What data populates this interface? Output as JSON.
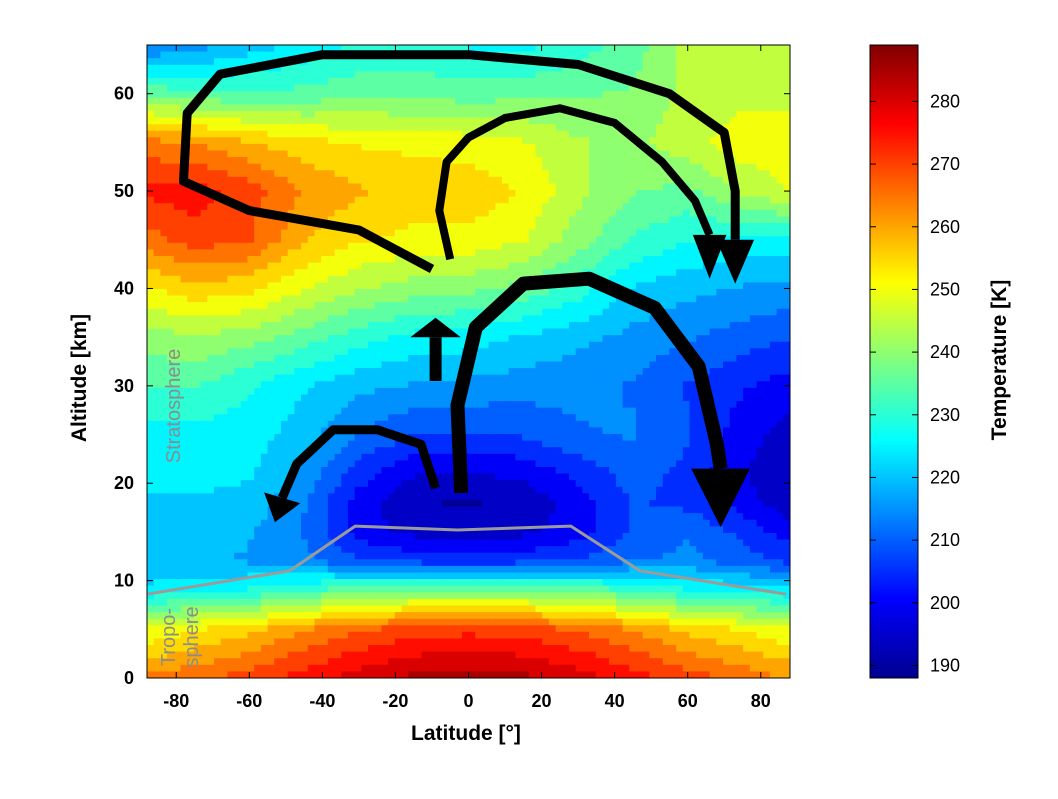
{
  "chart_data": {
    "type": "heatmap",
    "xlabel": "Latitude [°]",
    "ylabel": "Altitude [km]",
    "colorbar_label": "Temperature [K]",
    "xlim": [
      -88,
      88
    ],
    "ylim": [
      0,
      65
    ],
    "x_ticks": [
      "-80",
      "-60",
      "-40",
      "-20",
      "0",
      "20",
      "40",
      "60",
      "80"
    ],
    "y_ticks": [
      "0",
      "10",
      "20",
      "30",
      "40",
      "50",
      "60"
    ],
    "colorbar_range": [
      188,
      289
    ],
    "colorbar_ticks": [
      "190",
      "200",
      "210",
      "220",
      "230",
      "240",
      "250",
      "260",
      "270",
      "280"
    ],
    "colormap": "jet",
    "grid": false,
    "region_labels": [
      "Stratosphere",
      "Tropo-",
      "sphere"
    ],
    "tropopause": {
      "color": "#9b9b9b",
      "x": [
        -88,
        -49,
        -31,
        -3,
        28,
        47,
        87
      ],
      "y": [
        8.6,
        11,
        15.6,
        15.2,
        15.6,
        11,
        8.6
      ]
    },
    "temperature_field": {
      "columns_latitude": [
        -88,
        -75,
        -60,
        -45,
        -30,
        -15,
        0,
        15,
        30,
        45,
        60,
        75,
        88
      ],
      "rows": [
        {
          "altitude": 0,
          "values": [
            264,
            266,
            270,
            275,
            280,
            284,
            285,
            284,
            280,
            275,
            270,
            266,
            262
          ]
        },
        {
          "altitude": 5,
          "values": [
            248,
            252,
            256,
            262,
            267,
            270,
            271,
            270,
            267,
            262,
            256,
            252,
            248
          ]
        },
        {
          "altitude": 9,
          "values": [
            224,
            226,
            228,
            232,
            236,
            238,
            238,
            238,
            236,
            232,
            228,
            226,
            224
          ]
        },
        {
          "altitude": 12,
          "values": [
            218,
            218,
            217,
            214,
            208,
            206,
            205,
            206,
            208,
            212,
            214,
            210,
            206
          ]
        },
        {
          "altitude": 15,
          "values": [
            220,
            220,
            218,
            212,
            200,
            196,
            194,
            196,
            200,
            208,
            212,
            206,
            200
          ]
        },
        {
          "altitude": 18,
          "values": [
            222,
            222,
            221,
            213,
            200,
            193,
            192,
            194,
            200,
            208,
            206,
            200,
            194
          ]
        },
        {
          "altitude": 21,
          "values": [
            224,
            224,
            223,
            216,
            205,
            198,
            197,
            199,
            204,
            210,
            206,
            198,
            192
          ]
        },
        {
          "altitude": 25,
          "values": [
            226,
            226,
            225,
            220,
            212,
            208,
            207,
            208,
            212,
            213,
            208,
            200,
            195
          ]
        },
        {
          "altitude": 30,
          "values": [
            233,
            233,
            228,
            223,
            219,
            217,
            216,
            215,
            214,
            212,
            207,
            203,
            200
          ]
        },
        {
          "altitude": 35,
          "values": [
            240,
            242,
            240,
            235,
            230,
            226,
            225,
            222,
            219,
            216,
            213,
            210,
            208
          ]
        },
        {
          "altitude": 40,
          "values": [
            252,
            256,
            254,
            248,
            243,
            240,
            239,
            236,
            230,
            222,
            219,
            217,
            216
          ]
        },
        {
          "altitude": 45,
          "values": [
            265,
            270,
            268,
            258,
            253,
            251,
            251,
            248,
            240,
            232,
            228,
            226,
            226
          ]
        },
        {
          "altitude": 50,
          "values": [
            274,
            275,
            270,
            262,
            258,
            256,
            256,
            252,
            244,
            238,
            236,
            244,
            248
          ]
        },
        {
          "altitude": 55,
          "values": [
            264,
            262,
            258,
            254,
            252,
            251,
            250,
            248,
            243,
            241,
            246,
            250,
            250
          ]
        },
        {
          "altitude": 60,
          "values": [
            236,
            234,
            233,
            234,
            236,
            236,
            235,
            236,
            237,
            238,
            244,
            246,
            246
          ]
        },
        {
          "altitude": 65,
          "values": [
            212,
            215,
            220,
            224,
            228,
            228,
            227,
            226,
            230,
            235,
            244,
            246,
            246
          ]
        }
      ]
    },
    "circulation_arrows": [
      {
        "name": "upper-loop",
        "points": [
          [
            -10,
            42
          ],
          [
            -30,
            46
          ],
          [
            -60,
            48
          ],
          [
            -78,
            51
          ],
          [
            -77,
            58
          ],
          [
            -68,
            62
          ],
          [
            -40,
            64
          ],
          [
            0,
            64
          ],
          [
            30,
            63
          ],
          [
            55,
            60
          ],
          [
            70,
            56
          ],
          [
            73,
            50
          ],
          [
            73,
            45
          ]
        ],
        "width": 9,
        "head_to": [
          73,
          40.5
        ]
      },
      {
        "name": "mid-loop",
        "points": [
          [
            -5,
            43
          ],
          [
            -8,
            48
          ],
          [
            -6,
            53
          ],
          [
            0,
            55.5
          ],
          [
            10,
            57.5
          ],
          [
            25,
            58.5
          ],
          [
            40,
            57
          ],
          [
            53,
            53
          ],
          [
            62,
            49
          ],
          [
            66,
            45.5
          ]
        ],
        "width": 8,
        "head_to": [
          66,
          41
        ]
      },
      {
        "name": "large-loop",
        "points": [
          [
            -2,
            19
          ],
          [
            -3,
            28
          ],
          [
            2,
            36
          ],
          [
            15,
            40.5
          ],
          [
            33,
            41
          ],
          [
            51,
            38
          ],
          [
            63,
            32
          ],
          [
            68,
            24
          ],
          [
            69,
            21.5
          ]
        ],
        "width": 14,
        "head_to": [
          69,
          15.5
        ]
      },
      {
        "name": "left-loop",
        "points": [
          [
            -9,
            19.5
          ],
          [
            -13,
            24
          ],
          [
            -25,
            25.5
          ],
          [
            -37,
            25.5
          ],
          [
            -47,
            22
          ],
          [
            -51,
            18.5
          ]
        ],
        "width": 9,
        "head_to": [
          -53,
          16
        ]
      },
      {
        "name": "up-arrow",
        "points": [
          [
            -9,
            30.5
          ],
          [
            -9,
            35
          ]
        ],
        "width": 12,
        "head_to": [
          -9,
          37
        ]
      }
    ]
  }
}
